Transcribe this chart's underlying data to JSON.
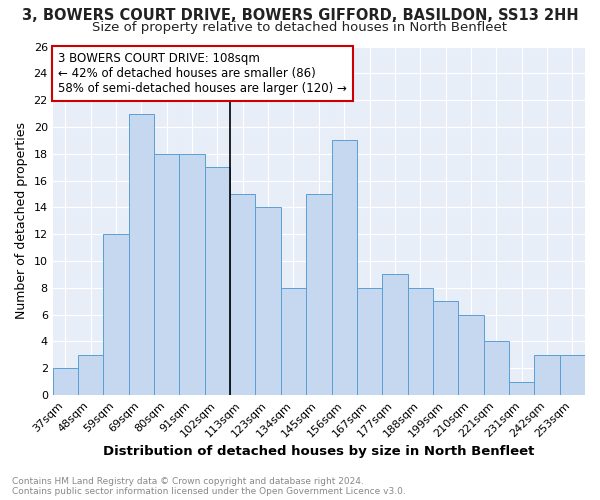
{
  "title": "3, BOWERS COURT DRIVE, BOWERS GIFFORD, BASILDON, SS13 2HH",
  "subtitle": "Size of property relative to detached houses in North Benfleet",
  "xlabel": "Distribution of detached houses by size in North Benfleet",
  "ylabel": "Number of detached properties",
  "categories": [
    "37sqm",
    "48sqm",
    "59sqm",
    "69sqm",
    "80sqm",
    "91sqm",
    "102sqm",
    "113sqm",
    "123sqm",
    "134sqm",
    "145sqm",
    "156sqm",
    "167sqm",
    "177sqm",
    "188sqm",
    "199sqm",
    "210sqm",
    "221sqm",
    "231sqm",
    "242sqm",
    "253sqm"
  ],
  "values": [
    2,
    3,
    12,
    21,
    18,
    18,
    17,
    15,
    14,
    8,
    15,
    19,
    8,
    9,
    8,
    7,
    6,
    4,
    1,
    3,
    3
  ],
  "bar_color": "#c5d8f0",
  "bar_edge_color": "#5a9fd4",
  "ylim": [
    0,
    26
  ],
  "yticks": [
    0,
    2,
    4,
    6,
    8,
    10,
    12,
    14,
    16,
    18,
    20,
    22,
    24,
    26
  ],
  "property_label": "3 BOWERS COURT DRIVE: 108sqm",
  "annotation_line1": "← 42% of detached houses are smaller (86)",
  "annotation_line2": "58% of semi-detached houses are larger (120) →",
  "annotation_box_color": "#ffffff",
  "annotation_box_edge": "#cc0000",
  "footnote1": "Contains HM Land Registry data © Crown copyright and database right 2024.",
  "footnote2": "Contains public sector information licensed under the Open Government Licence v3.0.",
  "background_color": "#e8eef8",
  "grid_color": "#ffffff",
  "fig_background": "#ffffff",
  "title_fontsize": 10.5,
  "subtitle_fontsize": 9.5,
  "tick_fontsize": 8,
  "ylabel_fontsize": 9,
  "xlabel_fontsize": 9.5,
  "annotation_fontsize": 8.5,
  "footnote_fontsize": 6.5
}
